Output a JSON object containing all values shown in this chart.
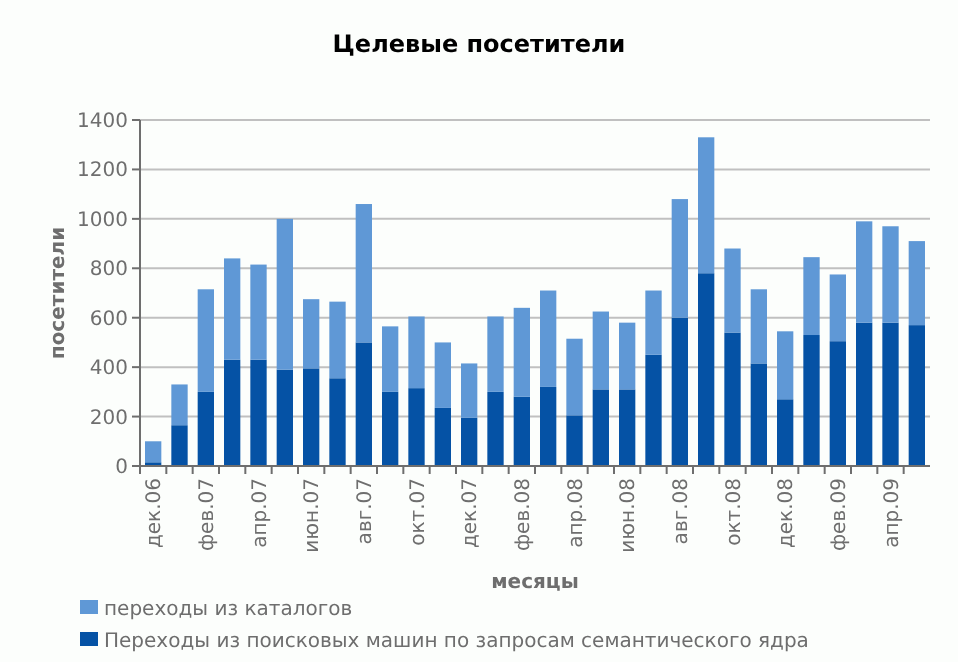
{
  "chart_data": {
    "type": "bar",
    "title": "Целевые посетители",
    "xlabel": "месяцы",
    "ylabel": "посетители",
    "stacked": true,
    "grid": "y",
    "legend": "bottom",
    "categories": [
      "дек.06",
      null,
      "фев.07",
      null,
      "апр.07",
      null,
      "июн.07",
      null,
      "авг.07",
      null,
      "окт.07",
      null,
      "дек.07",
      null,
      "фев.08",
      null,
      "апр.08",
      null,
      "июн.08",
      null,
      "авг.08",
      null,
      "окт.08",
      null,
      "дек.08",
      null,
      "фев.09",
      null,
      "апр.09",
      null
    ],
    "series": [
      {
        "name": "Переходы из поисковых машин по запросам семантического ядра",
        "color": "#0552a5",
        "values": [
          15,
          165,
          300,
          430,
          430,
          390,
          395,
          355,
          500,
          300,
          315,
          235,
          195,
          300,
          280,
          320,
          205,
          310,
          310,
          450,
          600,
          780,
          540,
          415,
          270,
          530,
          505,
          580,
          580,
          570
        ]
      },
      {
        "name": "переходы из каталогов",
        "color": "#5f98d6",
        "values": [
          85,
          165,
          415,
          410,
          385,
          610,
          280,
          310,
          560,
          265,
          290,
          265,
          220,
          305,
          360,
          390,
          310,
          315,
          270,
          260,
          480,
          550,
          340,
          300,
          275,
          315,
          270,
          410,
          390,
          340
        ]
      }
    ],
    "ylim": [
      0,
      1400
    ],
    "yticks": [
      0,
      200,
      400,
      600,
      800,
      1000,
      1200,
      1400
    ]
  }
}
